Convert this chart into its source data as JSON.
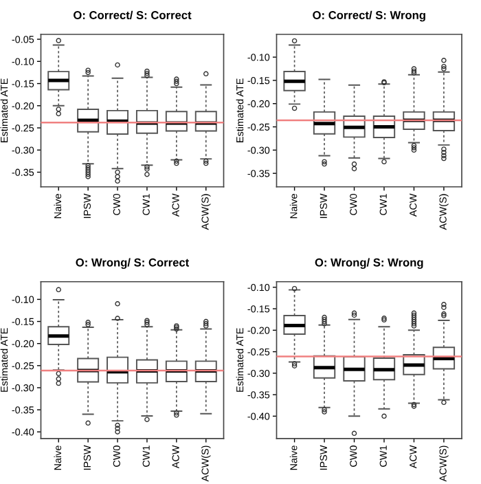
{
  "chart_data": [
    {
      "type": "box",
      "title": "O: Correct/ S: Correct",
      "ylabel": "Estimated ATE",
      "categories": [
        "Naive",
        "IPSW",
        "CW0",
        "CW1",
        "ACW",
        "ACW(S)"
      ],
      "ylim": [
        -0.383,
        -0.039
      ],
      "yticks": [
        {
          "value": -0.05,
          "label": "-0.05"
        },
        {
          "value": -0.1,
          "label": "-0.10"
        },
        {
          "value": -0.15,
          "label": "-0.15"
        },
        {
          "value": -0.2,
          "label": "-0.20"
        },
        {
          "value": -0.25,
          "label": "-0.25"
        },
        {
          "value": -0.3,
          "label": "-0.30"
        },
        {
          "value": -0.35,
          "label": "-0.35"
        }
      ],
      "ref_lines": [
        {
          "axis": "y",
          "value": -0.238,
          "color": "#f08080"
        }
      ],
      "boxes": [
        {
          "low": -0.2,
          "q1": -0.164,
          "median": -0.143,
          "q3": -0.123,
          "high": -0.063,
          "outliers": [
            -0.053,
            -0.208,
            -0.218
          ]
        },
        {
          "low": -0.331,
          "q1": -0.259,
          "median": -0.233,
          "q3": -0.208,
          "high": -0.133,
          "outliers": [
            -0.12,
            -0.125,
            -0.335,
            -0.34,
            -0.345,
            -0.35,
            -0.355,
            -0.36
          ]
        },
        {
          "low": -0.342,
          "q1": -0.264,
          "median": -0.235,
          "q3": -0.211,
          "high": -0.138,
          "outliers": [
            -0.108,
            -0.35,
            -0.36,
            -0.37
          ]
        },
        {
          "low": -0.334,
          "q1": -0.262,
          "median": -0.239,
          "q3": -0.211,
          "high": -0.136,
          "outliers": [
            -0.122,
            -0.127,
            -0.132,
            -0.338,
            -0.343,
            -0.355
          ]
        },
        {
          "low": -0.322,
          "q1": -0.257,
          "median": -0.239,
          "q3": -0.213,
          "high": -0.158,
          "outliers": [
            -0.14,
            -0.145,
            -0.15,
            -0.325,
            -0.33
          ]
        },
        {
          "low": -0.32,
          "q1": -0.257,
          "median": -0.239,
          "q3": -0.213,
          "high": -0.153,
          "outliers": [
            -0.128,
            -0.325,
            -0.33
          ]
        }
      ]
    },
    {
      "type": "box",
      "title": "O: Correct/ S: Wrong",
      "ylabel": "Estimated ATE",
      "categories": [
        "Naive",
        "IPSW",
        "CW0",
        "CW1",
        "ACW",
        "ACW(S)"
      ],
      "ylim": [
        -0.379,
        -0.051
      ],
      "yticks": [
        {
          "value": -0.1,
          "label": "-0.10"
        },
        {
          "value": -0.15,
          "label": "-0.15"
        },
        {
          "value": -0.2,
          "label": "-0.20"
        },
        {
          "value": -0.25,
          "label": "-0.25"
        },
        {
          "value": -0.3,
          "label": "-0.30"
        },
        {
          "value": -0.35,
          "label": "-0.35"
        }
      ],
      "ref_lines": [
        {
          "axis": "y",
          "value": -0.236,
          "color": "#f08080"
        }
      ],
      "boxes": [
        {
          "low": -0.201,
          "q1": -0.172,
          "median": -0.152,
          "q3": -0.131,
          "high": -0.074,
          "outliers": [
            -0.065,
            -0.21
          ]
        },
        {
          "low": -0.312,
          "q1": -0.265,
          "median": -0.243,
          "q3": -0.218,
          "high": -0.148,
          "outliers": [
            -0.325,
            -0.33
          ]
        },
        {
          "low": -0.317,
          "q1": -0.272,
          "median": -0.251,
          "q3": -0.227,
          "high": -0.16,
          "outliers": [
            -0.33,
            -0.34
          ]
        },
        {
          "low": -0.318,
          "q1": -0.273,
          "median": -0.25,
          "q3": -0.227,
          "high": -0.158,
          "outliers": [
            -0.153,
            -0.155,
            -0.325
          ]
        },
        {
          "low": -0.284,
          "q1": -0.255,
          "median": -0.236,
          "q3": -0.218,
          "high": -0.138,
          "outliers": [
            -0.125,
            -0.13,
            -0.134,
            -0.29,
            -0.295,
            -0.3
          ]
        },
        {
          "low": -0.289,
          "q1": -0.258,
          "median": -0.236,
          "q3": -0.218,
          "high": -0.132,
          "outliers": [
            -0.107,
            -0.12,
            -0.125,
            -0.298,
            -0.305,
            -0.312,
            -0.318
          ]
        }
      ]
    },
    {
      "type": "box",
      "title": "O: Wrong/ S: Correct",
      "ylabel": "Estimated ATE",
      "categories": [
        "Naive",
        "IPSW",
        "CW0",
        "CW1",
        "ACW",
        "ACW(S)"
      ],
      "ylim": [
        -0.415,
        -0.06
      ],
      "yticks": [
        {
          "value": -0.1,
          "label": "-0.10"
        },
        {
          "value": -0.15,
          "label": "-0.15"
        },
        {
          "value": -0.2,
          "label": "-0.20"
        },
        {
          "value": -0.25,
          "label": "-0.25"
        },
        {
          "value": -0.3,
          "label": "-0.30"
        },
        {
          "value": -0.35,
          "label": "-0.35"
        },
        {
          "value": -0.4,
          "label": "-0.40"
        }
      ],
      "ref_lines": [
        {
          "axis": "y",
          "value": -0.261,
          "color": "#f08080"
        }
      ],
      "boxes": [
        {
          "low": -0.26,
          "q1": -0.202,
          "median": -0.183,
          "q3": -0.162,
          "high": -0.101,
          "outliers": [
            -0.078,
            -0.268,
            -0.28,
            -0.29
          ]
        },
        {
          "low": -0.36,
          "q1": -0.287,
          "median": -0.261,
          "q3": -0.234,
          "high": -0.163,
          "outliers": [
            -0.152,
            -0.157,
            -0.38
          ]
        },
        {
          "low": -0.375,
          "q1": -0.289,
          "median": -0.264,
          "q3": -0.231,
          "high": -0.146,
          "outliers": [
            -0.11,
            -0.143,
            -0.385,
            -0.392,
            -0.4
          ]
        },
        {
          "low": -0.364,
          "q1": -0.289,
          "median": -0.262,
          "q3": -0.237,
          "high": -0.162,
          "outliers": [
            -0.148,
            -0.152,
            -0.157,
            -0.372
          ]
        },
        {
          "low": -0.353,
          "q1": -0.286,
          "median": -0.262,
          "q3": -0.24,
          "high": -0.169,
          "outliers": [
            -0.16,
            -0.163,
            -0.167,
            -0.357,
            -0.362
          ]
        },
        {
          "low": -0.359,
          "q1": -0.286,
          "median": -0.262,
          "q3": -0.24,
          "high": -0.167,
          "outliers": [
            -0.15,
            -0.155,
            -0.16
          ]
        }
      ]
    },
    {
      "type": "box",
      "title": "O: Wrong/ S: Wrong",
      "ylabel": "Estimated ATE",
      "categories": [
        "Naive",
        "IPSW",
        "CW0",
        "CW1",
        "ACW",
        "ACW(S)"
      ],
      "ylim": [
        -0.452,
        -0.087
      ],
      "yticks": [
        {
          "value": -0.1,
          "label": "-0.10"
        },
        {
          "value": -0.15,
          "label": "-0.15"
        },
        {
          "value": -0.2,
          "label": "-0.20"
        },
        {
          "value": -0.25,
          "label": "-0.25"
        },
        {
          "value": -0.3,
          "label": "-0.30"
        },
        {
          "value": -0.35,
          "label": "-0.35"
        },
        {
          "value": -0.4,
          "label": "-0.40"
        }
      ],
      "ref_lines": [
        {
          "axis": "y",
          "value": -0.261,
          "color": "#f08080"
        }
      ],
      "boxes": [
        {
          "low": -0.274,
          "q1": -0.209,
          "median": -0.189,
          "q3": -0.166,
          "high": -0.106,
          "outliers": [
            -0.103,
            -0.278,
            -0.283
          ]
        },
        {
          "low": -0.38,
          "q1": -0.311,
          "median": -0.287,
          "q3": -0.26,
          "high": -0.188,
          "outliers": [
            -0.17,
            -0.175,
            -0.18,
            -0.185,
            -0.385,
            -0.39
          ]
        },
        {
          "low": -0.4,
          "q1": -0.318,
          "median": -0.291,
          "q3": -0.262,
          "high": -0.175,
          "outliers": [
            -0.16,
            -0.165,
            -0.44
          ]
        },
        {
          "low": -0.383,
          "q1": -0.315,
          "median": -0.292,
          "q3": -0.265,
          "high": -0.192,
          "outliers": [
            -0.172,
            -0.176,
            -0.4
          ]
        },
        {
          "low": -0.37,
          "q1": -0.303,
          "median": -0.281,
          "q3": -0.257,
          "high": -0.2,
          "outliers": [
            -0.16,
            -0.165,
            -0.17,
            -0.175,
            -0.18,
            -0.185,
            -0.19,
            -0.373,
            -0.377
          ]
        },
        {
          "low": -0.362,
          "q1": -0.29,
          "median": -0.266,
          "q3": -0.24,
          "high": -0.177,
          "outliers": [
            -0.14,
            -0.147,
            -0.162,
            -0.166,
            -0.368
          ]
        }
      ]
    }
  ]
}
